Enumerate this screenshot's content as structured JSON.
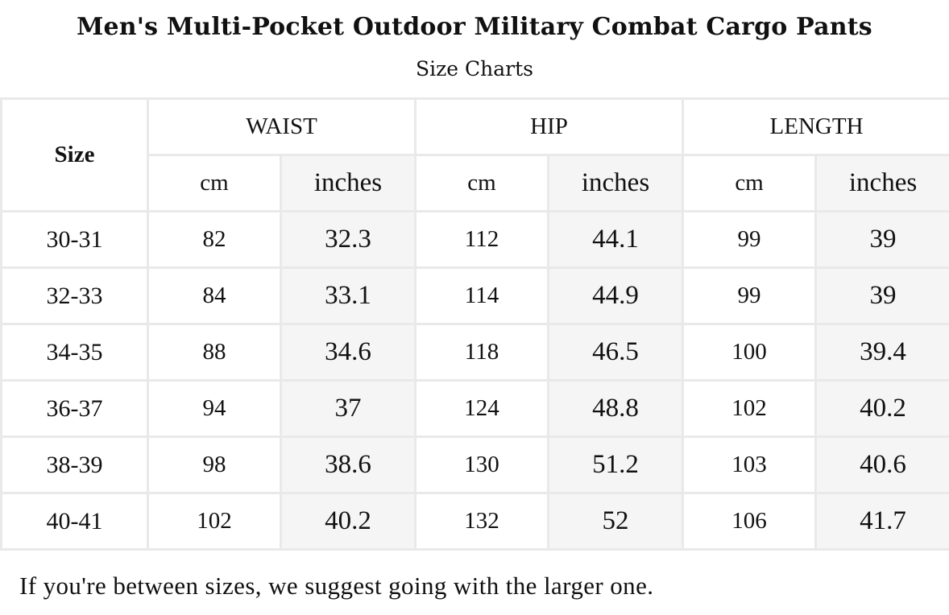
{
  "header": {
    "title": "Men's Multi-Pocket Outdoor Military Combat Cargo Pants",
    "subtitle": "Size Charts"
  },
  "table": {
    "size_label": "Size",
    "groups": [
      "WAIST",
      "HIP",
      "LENGTH"
    ],
    "units": [
      "cm",
      "inches",
      "cm",
      "inches",
      "cm",
      "inches"
    ],
    "rows": [
      [
        "30-31",
        "82",
        "32.3",
        "112",
        "44.1",
        "99",
        "39"
      ],
      [
        "32-33",
        "84",
        "33.1",
        "114",
        "44.9",
        "99",
        "39"
      ],
      [
        "34-35",
        "88",
        "34.6",
        "118",
        "46.5",
        "100",
        "39.4"
      ],
      [
        "36-37",
        "94",
        "37",
        "124",
        "48.8",
        "102",
        "40.2"
      ],
      [
        "38-39",
        "98",
        "38.6",
        "130",
        "51.2",
        "103",
        "40.6"
      ],
      [
        "40-41",
        "102",
        "40.2",
        "132",
        "52",
        "106",
        "41.7"
      ]
    ]
  },
  "footer": {
    "note": "If you're between sizes, we suggest going with the larger one."
  },
  "colors": {
    "border": "#e9e9e9",
    "shaded_column": "#f5f5f5",
    "text": "#111111"
  }
}
